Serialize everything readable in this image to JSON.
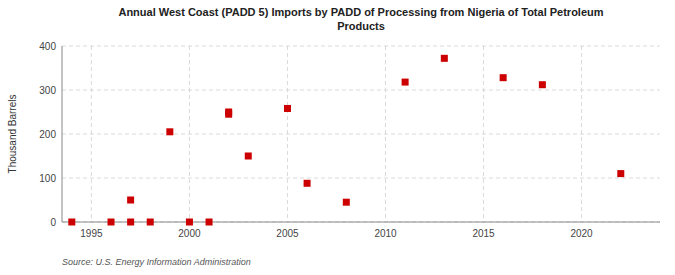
{
  "chart_data": {
    "type": "scatter",
    "title": "Annual West Coast (PADD 5) Imports by PADD of Processing from Nigeria of Total Petroleum\nProducts",
    "ylabel": "Thousand Barrels",
    "annotations": [
      "Source: U.S. Energy Information Administration"
    ],
    "x": [
      1994,
      1996,
      1997,
      1997,
      1998,
      1999,
      2000,
      2001,
      2002,
      2002,
      2003,
      2005,
      2006,
      2008,
      2011,
      2013,
      2016,
      2018,
      2022
    ],
    "values": [
      0,
      0,
      0,
      50,
      0,
      205,
      0,
      0,
      250,
      245,
      150,
      258,
      88,
      45,
      318,
      372,
      328,
      312,
      110
    ],
    "color": "#cc0000",
    "marker": "square",
    "xlim": [
      1993.5,
      2024
    ],
    "ylim": [
      0,
      400
    ],
    "xticks": [
      1995,
      2000,
      2005,
      2010,
      2015,
      2020
    ],
    "yticks": [
      0,
      100,
      200,
      300,
      400
    ],
    "grid": true
  }
}
